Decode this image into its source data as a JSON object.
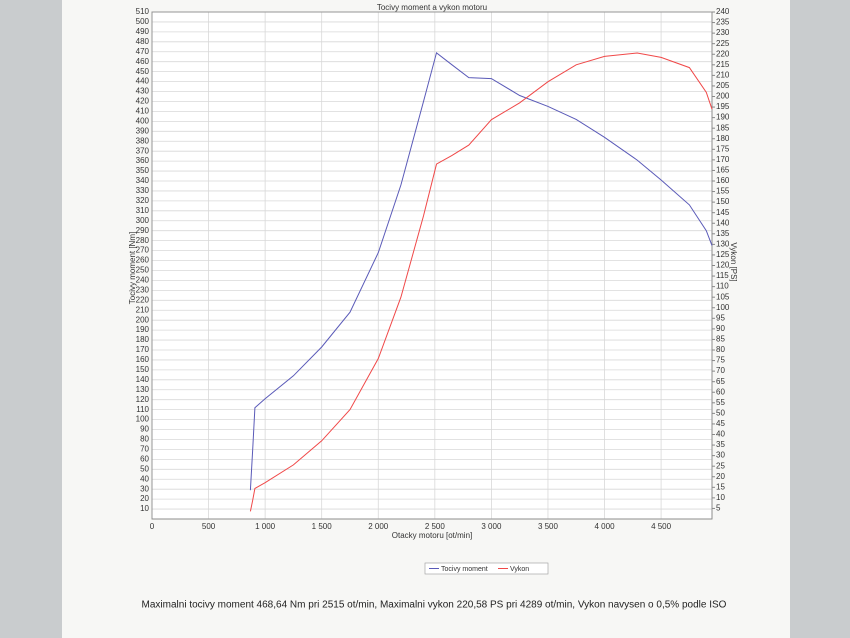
{
  "chart_data": {
    "type": "line",
    "title": "Tocivy moment a vykon motoru",
    "x_label": "Otacky motoru [ot/min]",
    "y_label": "Tocivy moment [Nm]",
    "y2_label": "Vykon [PS]",
    "footer": "Maximalni tocivy moment 468,64 Nm pri 2515 ot/min,  Maximalni vykon 220,58 PS pri 4289 ot/min,  Vykon navysen o 0,5% podle ISO",
    "x": [
      870,
      890,
      910,
      1000,
      1250,
      1500,
      1750,
      2000,
      2200,
      2400,
      2515,
      2650,
      2800,
      3000,
      3250,
      3500,
      3750,
      4000,
      4289,
      4500,
      4750,
      4900,
      4950
    ],
    "series": [
      {
        "name": "Tocivy moment",
        "color": "#5a5ab8",
        "values": [
          29,
          70,
          112,
          121,
          144,
          173,
          208,
          268,
          336,
          420,
          469,
          457,
          444,
          443,
          426,
          415,
          402,
          384,
          361,
          341,
          316,
          290,
          275
        ]
      },
      {
        "name": "Vykon",
        "color": "#f04848",
        "axis": "y2",
        "values": [
          3.6,
          8.9,
          14.5,
          17.2,
          25.6,
          37,
          51.8,
          76,
          105,
          143.5,
          168,
          172,
          177,
          189,
          197,
          207,
          215,
          219,
          220.58,
          218.5,
          213.7,
          202,
          194
        ]
      }
    ],
    "xlim": [
      0,
      4950
    ],
    "xticks": [
      0,
      500,
      {
        "value": 1000,
        "label": "1 000"
      },
      {
        "value": 1500,
        "label": "1 500"
      },
      {
        "value": 2000,
        "label": "2 000"
      },
      {
        "value": 2500,
        "label": "2 500"
      },
      {
        "value": 3000,
        "label": "3 000"
      },
      {
        "value": 3500,
        "label": "3 500"
      },
      {
        "value": 4000,
        "label": "4 000"
      },
      {
        "value": 4500,
        "label": "4 500"
      }
    ],
    "ylim": [
      0,
      510
    ],
    "yticks": [
      10,
      20,
      30,
      40,
      50,
      60,
      70,
      80,
      90,
      100,
      110,
      120,
      130,
      140,
      150,
      160,
      170,
      180,
      190,
      200,
      210,
      220,
      230,
      240,
      250,
      260,
      270,
      280,
      290,
      300,
      310,
      320,
      330,
      340,
      350,
      360,
      370,
      380,
      390,
      400,
      410,
      420,
      430,
      440,
      450,
      460,
      470,
      480,
      490,
      500,
      510
    ],
    "y2lim": [
      0,
      240
    ],
    "y2ticks": [
      5,
      10,
      15,
      20,
      25,
      30,
      35,
      40,
      45,
      50,
      55,
      60,
      65,
      70,
      75,
      80,
      85,
      90,
      95,
      100,
      105,
      110,
      115,
      120,
      125,
      130,
      135,
      140,
      145,
      150,
      155,
      160,
      165,
      170,
      175,
      180,
      185,
      190,
      195,
      200,
      205,
      210,
      215,
      220,
      225,
      230,
      235,
      240
    ],
    "grid": true
  }
}
